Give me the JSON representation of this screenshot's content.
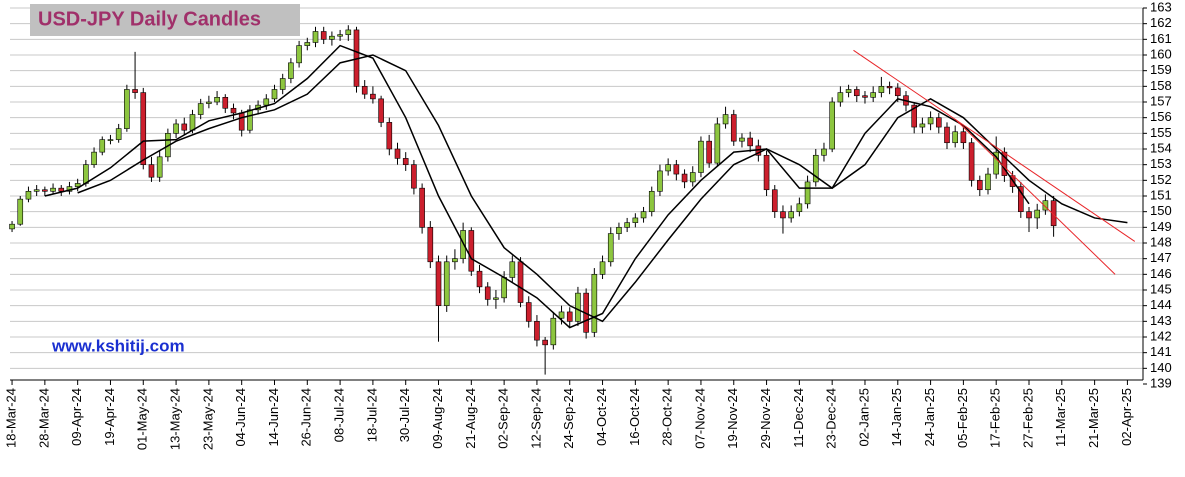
{
  "chart_data": {
    "type": "candlestick",
    "title": "USD-JPY Daily Candles",
    "watermark": "www.kshitij.com",
    "ylim": [
      139,
      163
    ],
    "yticks": [
      139,
      140,
      141,
      142,
      143,
      144,
      145,
      146,
      147,
      148,
      149,
      150,
      151,
      152,
      153,
      154,
      155,
      156,
      157,
      158,
      159,
      160,
      161,
      162,
      163
    ],
    "xlim": [
      -0.25,
      137.9
    ],
    "xticks": [
      {
        "value": 0,
        "label": "18-Mar-24"
      },
      {
        "value": 4,
        "label": "28-Mar-24"
      },
      {
        "value": 8,
        "label": "09-Apr-24"
      },
      {
        "value": 12,
        "label": "19-Apr-24"
      },
      {
        "value": 16,
        "label": "01-May-24"
      },
      {
        "value": 20,
        "label": "13-May-24"
      },
      {
        "value": 24,
        "label": "23-May-24"
      },
      {
        "value": 28,
        "label": "04-Jun-24"
      },
      {
        "value": 32,
        "label": "14-Jun-24"
      },
      {
        "value": 36,
        "label": "26-Jun-24"
      },
      {
        "value": 40,
        "label": "08-Jul-24"
      },
      {
        "value": 44,
        "label": "18-Jul-24"
      },
      {
        "value": 48,
        "label": "30-Jul-24"
      },
      {
        "value": 52,
        "label": "09-Aug-24"
      },
      {
        "value": 56,
        "label": "21-Aug-24"
      },
      {
        "value": 60,
        "label": "02-Sep-24"
      },
      {
        "value": 64,
        "label": "12-Sep-24"
      },
      {
        "value": 68,
        "label": "24-Sep-24"
      },
      {
        "value": 72,
        "label": "04-Oct-24"
      },
      {
        "value": 76,
        "label": "16-Oct-24"
      },
      {
        "value": 80,
        "label": "28-Oct-24"
      },
      {
        "value": 84,
        "label": "07-Nov-24"
      },
      {
        "value": 88,
        "label": "19-Nov-24"
      },
      {
        "value": 92,
        "label": "29-Nov-24"
      },
      {
        "value": 96,
        "label": "11-Dec-24"
      },
      {
        "value": 100,
        "label": "23-Dec-24"
      },
      {
        "value": 104,
        "label": "02-Jan-25"
      },
      {
        "value": 108,
        "label": "14-Jan-25"
      },
      {
        "value": 112,
        "label": "24-Jan-25"
      },
      {
        "value": 116,
        "label": "05-Feb-25"
      },
      {
        "value": 120,
        "label": "17-Feb-25"
      },
      {
        "value": 124,
        "label": "27-Feb-25"
      },
      {
        "value": 128,
        "label": "11-Mar-25"
      },
      {
        "value": 132,
        "label": "21-Mar-25"
      },
      {
        "value": 136,
        "label": "02-Apr-25"
      }
    ],
    "grid": true,
    "up_color": "#8dc63f",
    "down_color": "#cc1f2d",
    "candles": [
      [
        148.9,
        149.4,
        148.7,
        149.2
      ],
      [
        149.2,
        151.0,
        149.1,
        150.8
      ],
      [
        150.8,
        151.6,
        150.6,
        151.3
      ],
      [
        151.3,
        151.7,
        151.0,
        151.4
      ],
      [
        151.4,
        151.6,
        151.0,
        151.3
      ],
      [
        151.3,
        151.8,
        151.1,
        151.5
      ],
      [
        151.5,
        151.7,
        151.0,
        151.3
      ],
      [
        151.3,
        151.9,
        151.1,
        151.6
      ],
      [
        151.6,
        152.1,
        151.3,
        151.8
      ],
      [
        151.8,
        153.3,
        151.6,
        153.0
      ],
      [
        153.0,
        154.1,
        152.8,
        153.8
      ],
      [
        153.8,
        154.8,
        153.6,
        154.6
      ],
      [
        154.6,
        154.9,
        154.3,
        154.6
      ],
      [
        154.6,
        155.6,
        154.4,
        155.3
      ],
      [
        155.3,
        158.1,
        155.1,
        157.8
      ],
      [
        157.8,
        160.2,
        157.2,
        157.6
      ],
      [
        157.6,
        157.9,
        152.7,
        153.0
      ],
      [
        153.0,
        153.5,
        151.9,
        152.2
      ],
      [
        152.2,
        153.9,
        151.9,
        153.5
      ],
      [
        153.5,
        155.3,
        153.2,
        155.0
      ],
      [
        155.0,
        155.9,
        154.7,
        155.6
      ],
      [
        155.6,
        156.0,
        154.9,
        155.2
      ],
      [
        155.2,
        156.5,
        155.0,
        156.2
      ],
      [
        156.2,
        157.2,
        155.9,
        156.9
      ],
      [
        156.9,
        157.4,
        156.6,
        157.0
      ],
      [
        157.0,
        157.7,
        156.8,
        157.3
      ],
      [
        157.3,
        157.5,
        156.3,
        156.6
      ],
      [
        156.6,
        156.9,
        155.9,
        156.3
      ],
      [
        156.3,
        156.5,
        154.8,
        155.2
      ],
      [
        155.2,
        156.8,
        155.0,
        156.5
      ],
      [
        156.5,
        157.1,
        156.2,
        156.8
      ],
      [
        156.8,
        157.5,
        156.5,
        157.2
      ],
      [
        157.2,
        158.1,
        157.0,
        157.8
      ],
      [
        157.8,
        158.8,
        157.5,
        158.5
      ],
      [
        158.5,
        159.8,
        158.2,
        159.5
      ],
      [
        159.5,
        160.9,
        159.2,
        160.6
      ],
      [
        160.6,
        161.1,
        160.3,
        160.8
      ],
      [
        160.8,
        161.8,
        160.5,
        161.5
      ],
      [
        161.5,
        161.8,
        160.7,
        161.0
      ],
      [
        161.0,
        161.5,
        160.6,
        161.2
      ],
      [
        161.2,
        161.6,
        160.9,
        161.3
      ],
      [
        161.3,
        161.9,
        160.9,
        161.6
      ],
      [
        161.6,
        161.8,
        157.6,
        158.0
      ],
      [
        158.0,
        158.4,
        157.2,
        157.5
      ],
      [
        157.5,
        158.0,
        156.9,
        157.2
      ],
      [
        157.2,
        157.4,
        155.4,
        155.7
      ],
      [
        155.7,
        156.0,
        153.6,
        154.0
      ],
      [
        154.0,
        154.4,
        153.0,
        153.4
      ],
      [
        153.4,
        153.8,
        152.6,
        153.0
      ],
      [
        153.0,
        153.3,
        151.1,
        151.5
      ],
      [
        151.5,
        151.8,
        148.6,
        149.0
      ],
      [
        149.0,
        149.4,
        146.4,
        146.8
      ],
      [
        146.8,
        147.2,
        141.7,
        144.0
      ],
      [
        144.0,
        147.2,
        143.6,
        146.8
      ],
      [
        146.8,
        147.6,
        146.3,
        147.0
      ],
      [
        147.0,
        149.3,
        146.7,
        148.8
      ],
      [
        148.8,
        149.0,
        145.9,
        146.2
      ],
      [
        146.2,
        146.6,
        144.8,
        145.2
      ],
      [
        145.2,
        145.5,
        144.0,
        144.4
      ],
      [
        144.4,
        145.0,
        143.8,
        144.5
      ],
      [
        144.5,
        146.2,
        144.2,
        145.8
      ],
      [
        145.8,
        147.2,
        145.5,
        146.8
      ],
      [
        146.8,
        147.1,
        143.9,
        144.2
      ],
      [
        144.2,
        144.6,
        142.6,
        143.0
      ],
      [
        143.0,
        143.4,
        141.4,
        141.8
      ],
      [
        141.8,
        142.0,
        139.6,
        141.5
      ],
      [
        141.5,
        143.6,
        141.2,
        143.2
      ],
      [
        143.2,
        144.0,
        142.8,
        143.6
      ],
      [
        143.6,
        143.9,
        142.6,
        143.0
      ],
      [
        143.0,
        145.2,
        142.7,
        144.8
      ],
      [
        144.8,
        145.1,
        141.9,
        142.3
      ],
      [
        142.3,
        146.4,
        142.0,
        146.0
      ],
      [
        146.0,
        147.2,
        145.7,
        146.8
      ],
      [
        146.8,
        149.0,
        146.5,
        148.6
      ],
      [
        148.6,
        149.3,
        148.2,
        149.0
      ],
      [
        149.0,
        149.6,
        148.7,
        149.3
      ],
      [
        149.3,
        149.9,
        149.0,
        149.6
      ],
      [
        149.6,
        150.3,
        149.3,
        150.0
      ],
      [
        150.0,
        151.6,
        149.7,
        151.3
      ],
      [
        151.3,
        153.0,
        151.0,
        152.6
      ],
      [
        152.6,
        153.4,
        152.3,
        153.0
      ],
      [
        153.0,
        153.3,
        152.0,
        152.4
      ],
      [
        152.4,
        152.7,
        151.5,
        151.9
      ],
      [
        151.9,
        152.9,
        151.6,
        152.5
      ],
      [
        152.5,
        154.8,
        152.2,
        154.5
      ],
      [
        154.5,
        154.9,
        152.8,
        153.1
      ],
      [
        153.1,
        156.0,
        152.9,
        155.6
      ],
      [
        155.6,
        156.7,
        155.3,
        156.2
      ],
      [
        156.2,
        156.5,
        154.2,
        154.5
      ],
      [
        154.5,
        155.0,
        154.1,
        154.7
      ],
      [
        154.7,
        155.1,
        153.8,
        154.2
      ],
      [
        154.2,
        154.6,
        153.2,
        153.6
      ],
      [
        153.6,
        153.9,
        151.0,
        151.4
      ],
      [
        151.4,
        151.7,
        149.6,
        150.0
      ],
      [
        150.0,
        150.4,
        148.6,
        149.6
      ],
      [
        149.6,
        150.4,
        149.3,
        150.0
      ],
      [
        150.0,
        150.9,
        149.7,
        150.5
      ],
      [
        150.5,
        152.3,
        150.2,
        151.9
      ],
      [
        151.9,
        154.0,
        151.6,
        153.6
      ],
      [
        153.6,
        154.4,
        153.2,
        154.0
      ],
      [
        154.0,
        157.3,
        153.8,
        157.0
      ],
      [
        157.0,
        158.0,
        156.7,
        157.6
      ],
      [
        157.6,
        158.1,
        157.3,
        157.8
      ],
      [
        157.8,
        158.0,
        157.0,
        157.4
      ],
      [
        157.4,
        157.7,
        156.9,
        157.3
      ],
      [
        157.3,
        158.0,
        157.0,
        157.6
      ],
      [
        157.6,
        158.6,
        157.3,
        158.0
      ],
      [
        158.0,
        158.3,
        157.5,
        157.9
      ],
      [
        157.9,
        158.2,
        157.0,
        157.4
      ],
      [
        157.4,
        157.7,
        156.4,
        156.8
      ],
      [
        156.8,
        157.0,
        155.0,
        155.4
      ],
      [
        155.4,
        156.0,
        155.0,
        155.6
      ],
      [
        155.6,
        156.4,
        155.2,
        156.0
      ],
      [
        156.0,
        156.3,
        155.0,
        155.4
      ],
      [
        155.4,
        155.7,
        154.0,
        154.4
      ],
      [
        154.4,
        155.5,
        154.1,
        155.1
      ],
      [
        155.1,
        155.4,
        154.0,
        154.4
      ],
      [
        154.4,
        154.7,
        151.6,
        152.0
      ],
      [
        152.0,
        152.3,
        151.0,
        151.4
      ],
      [
        151.4,
        152.8,
        151.1,
        152.4
      ],
      [
        152.4,
        154.8,
        152.1,
        153.8
      ],
      [
        153.8,
        154.1,
        151.9,
        152.3
      ],
      [
        152.3,
        152.6,
        151.2,
        151.6
      ],
      [
        151.6,
        151.9,
        149.6,
        150.0
      ],
      [
        150.0,
        150.3,
        148.7,
        149.6
      ],
      [
        149.6,
        150.5,
        148.9,
        150.1
      ],
      [
        150.1,
        151.1,
        149.8,
        150.7
      ],
      [
        150.7,
        151.0,
        148.4,
        149.1
      ]
    ],
    "x": [
      0,
      4,
      8,
      12,
      16,
      20,
      24,
      28,
      32,
      36,
      40,
      44,
      48,
      52,
      56,
      60,
      64,
      68,
      72,
      76,
      80,
      84,
      88,
      92,
      96,
      100,
      104,
      108,
      112,
      116,
      120,
      124,
      128,
      132,
      136
    ],
    "series": [
      {
        "color": "#000000",
        "values": [
          null,
          151.0,
          151.5,
          152.8,
          154.5,
          154.6,
          155.8,
          156.3,
          156.9,
          158.5,
          160.6,
          159.8,
          156.0,
          151.0,
          147.0,
          145.8,
          144.5,
          142.6,
          143.5,
          147.0,
          149.8,
          152.0,
          153.8,
          154.0,
          151.5,
          151.5,
          155.0,
          157.2,
          156.7,
          155.5,
          153.5,
          150.5,
          null,
          null,
          null
        ]
      },
      {
        "color": "#000000",
        "values": [
          null,
          null,
          151.2,
          152.0,
          153.3,
          154.5,
          155.3,
          156.0,
          156.5,
          157.5,
          159.5,
          160.0,
          159.0,
          155.5,
          151.0,
          147.7,
          146.0,
          144.0,
          143.0,
          145.5,
          148.2,
          150.8,
          153.0,
          154.0,
          153.0,
          151.5,
          153.0,
          156.0,
          157.2,
          156.0,
          154.0,
          152.0,
          150.5,
          149.6,
          149.3
        ]
      }
    ],
    "trendlines": [
      {
        "color": "#e8262a",
        "x": [
          102.6,
          136.9
        ],
        "values": [
          160.3,
          148.1
        ]
      },
      {
        "color": "#e8262a",
        "x": [
          115.0,
          134.5
        ],
        "values": [
          155.9,
          146.0
        ]
      }
    ]
  }
}
